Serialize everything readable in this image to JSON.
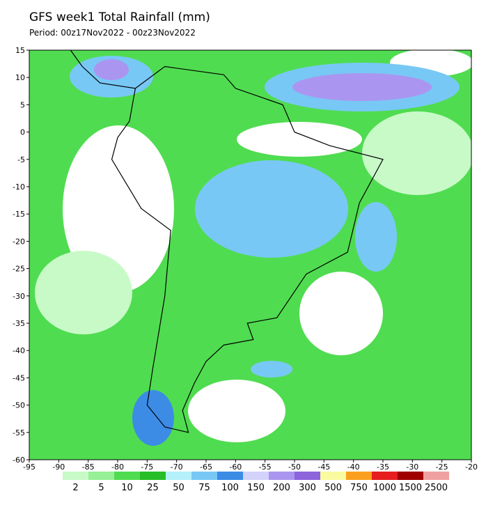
{
  "title": "GFS week1 Total Rainfall (mm)",
  "subtitle": "Period: 00z17Nov2022 - 00z23Nov2022",
  "map": {
    "xlim": [
      -95,
      -20
    ],
    "ylim": [
      -60,
      15
    ],
    "xticks": [
      -95,
      -90,
      -85,
      -80,
      -75,
      -70,
      -65,
      -60,
      -55,
      -50,
      -45,
      -40,
      -35,
      -30,
      -25,
      -20
    ],
    "yticks": [
      15,
      10,
      5,
      0,
      -5,
      -10,
      -15,
      -20,
      -25,
      -30,
      -35,
      -40,
      -45,
      -50,
      -55,
      -60
    ]
  },
  "colorbar": {
    "levels": [
      2,
      5,
      10,
      25,
      50,
      75,
      100,
      150,
      200,
      300,
      500,
      750,
      1000,
      1500,
      2500
    ],
    "colors": [
      "#c8fac8",
      "#96f096",
      "#50dc50",
      "#28be28",
      "#b4f0fa",
      "#78c8f5",
      "#3c8ce6",
      "#d2d2fa",
      "#aa96f0",
      "#8c64dc",
      "#fafaa0",
      "#faa01e",
      "#e61e1e",
      "#a00000",
      "#f0a0a0"
    ]
  }
}
